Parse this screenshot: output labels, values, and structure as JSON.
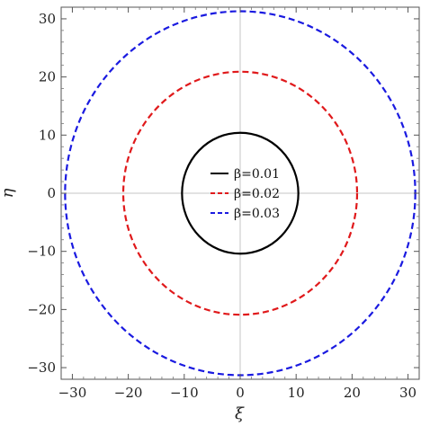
{
  "chart_data": {
    "type": "line",
    "title": "",
    "xlabel": "ξ",
    "ylabel": "η",
    "xlim": [
      -32,
      32
    ],
    "ylim": [
      -32,
      32
    ],
    "xticks": [
      -30,
      -20,
      -10,
      0,
      10,
      20,
      30
    ],
    "yticks": [
      -30,
      -20,
      -10,
      0,
      10,
      20,
      30
    ],
    "xtick_labels": [
      "−30",
      "−20",
      "−10",
      "0",
      "10",
      "20",
      "30"
    ],
    "ytick_labels": [
      "−30",
      "−20",
      "−10",
      "0",
      "10",
      "20",
      "30"
    ],
    "grid": false,
    "zero_lines": true,
    "legend_placement": "center",
    "series": [
      {
        "name": "β=0.01",
        "shape": "circle",
        "radius": 10.4,
        "color": "#000000",
        "dash": "solid"
      },
      {
        "name": "β=0.02",
        "shape": "circle",
        "radius": 20.9,
        "color": "#e0191b",
        "dash": "dashed"
      },
      {
        "name": "β=0.03",
        "shape": "circle",
        "radius": 31.3,
        "color": "#1a1ae0",
        "dash": "dashed"
      }
    ]
  }
}
